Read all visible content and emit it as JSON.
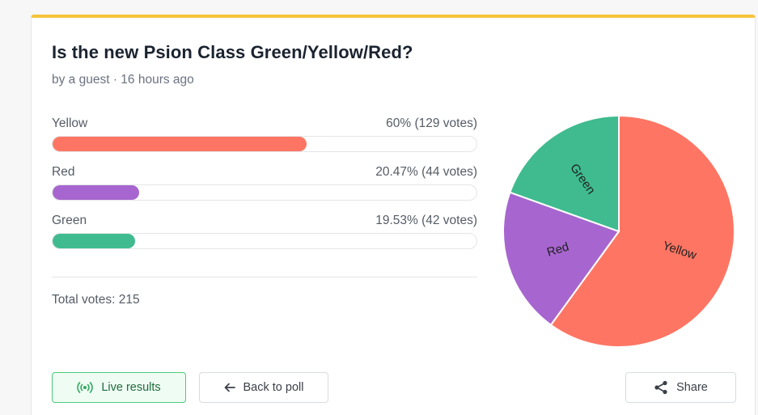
{
  "poll": {
    "title": "Is the new Psion Class Green/Yellow/Red?",
    "byline": "by a guest · 16 hours ago",
    "total_votes": "Total votes: 215"
  },
  "options": [
    {
      "label": "Yellow",
      "stat": "60% (129 votes)",
      "percent": 60,
      "color": "#ff7563"
    },
    {
      "label": "Red",
      "stat": "20.47% (44 votes)",
      "percent": 20.47,
      "color": "#a766cf"
    },
    {
      "label": "Green",
      "stat": "19.53% (42 votes)",
      "percent": 19.53,
      "color": "#3fbb8f"
    }
  ],
  "chart_data": {
    "type": "pie",
    "categories": [
      "Yellow",
      "Red",
      "Green"
    ],
    "values": [
      60,
      20.47,
      19.53
    ],
    "colors": [
      "#ff7563",
      "#a766cf",
      "#3fbb8f"
    ]
  },
  "buttons": {
    "live_label": "Live results",
    "back_label": "Back to poll",
    "share_label": "Share"
  },
  "icons": {
    "live": "broadcast-icon",
    "back": "arrow-left-icon",
    "share": "share-icon"
  }
}
